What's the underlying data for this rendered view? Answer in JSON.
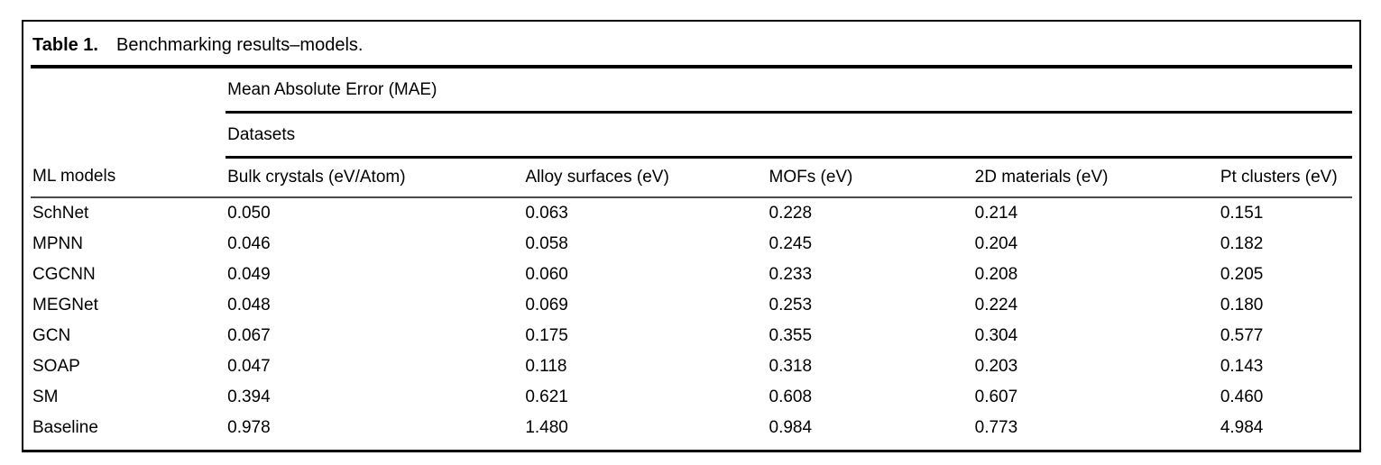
{
  "title": {
    "label": "Table 1.",
    "caption": "Benchmarking results–models."
  },
  "header": {
    "group": "Mean Absolute Error (MAE)",
    "subgroup": "Datasets"
  },
  "columns": [
    "ML models",
    "Bulk crystals (eV/Atom)",
    "Alloy surfaces (eV)",
    "MOFs (eV)",
    "2D materials (eV)",
    "Pt clusters (eV)"
  ],
  "rows": [
    {
      "model": "SchNet",
      "values": [
        "0.050",
        "0.063",
        "0.228",
        "0.214",
        "0.151"
      ]
    },
    {
      "model": "MPNN",
      "values": [
        "0.046",
        "0.058",
        "0.245",
        "0.204",
        "0.182"
      ]
    },
    {
      "model": "CGCNN",
      "values": [
        "0.049",
        "0.060",
        "0.233",
        "0.208",
        "0.205"
      ]
    },
    {
      "model": "MEGNet",
      "values": [
        "0.048",
        "0.069",
        "0.253",
        "0.224",
        "0.180"
      ]
    },
    {
      "model": "GCN",
      "values": [
        "0.067",
        "0.175",
        "0.355",
        "0.304",
        "0.577"
      ]
    },
    {
      "model": "SOAP",
      "values": [
        "0.047",
        "0.118",
        "0.318",
        "0.203",
        "0.143"
      ]
    },
    {
      "model": "SM",
      "values": [
        "0.394",
        "0.621",
        "0.608",
        "0.607",
        "0.460"
      ]
    },
    {
      "model": "Baseline",
      "values": [
        "0.978",
        "1.480",
        "0.984",
        "0.773",
        "4.984"
      ]
    }
  ],
  "colors": {
    "text": "#000000",
    "rule": "#000000",
    "header_rule": "#4a4a4a",
    "background": "#ffffff"
  }
}
